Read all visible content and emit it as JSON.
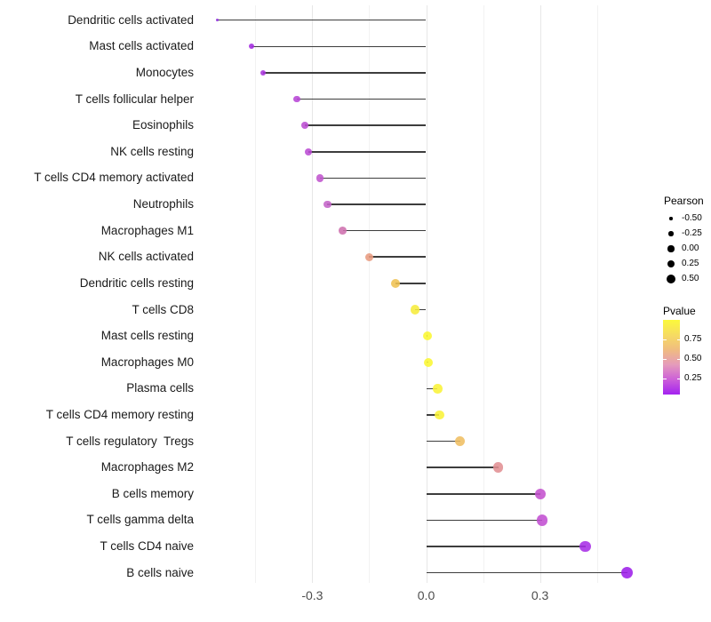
{
  "chart_data": {
    "type": "lollipop",
    "title": "",
    "xlabel": "",
    "ylabel": "",
    "xlim": [
      -0.6,
      0.56
    ],
    "x_ticks": [
      {
        "label": "-0.3",
        "value": -0.3
      },
      {
        "label": "0.0",
        "value": 0.0
      },
      {
        "label": "0.3",
        "value": 0.3
      }
    ],
    "minor_grid_values": [
      -0.45,
      -0.15,
      0.15,
      0.45
    ],
    "grid": "vertical-only",
    "points": [
      {
        "label": "Dendritic cells activated",
        "pearson": -0.55,
        "color": "#8B27DC"
      },
      {
        "label": "Mast cells activated",
        "pearson": -0.46,
        "color": "#A32BE0"
      },
      {
        "label": "Monocytes",
        "pearson": -0.43,
        "color": "#A834DC"
      },
      {
        "label": "T cells follicular helper",
        "pearson": -0.34,
        "color": "#B746D6"
      },
      {
        "label": "Eosinophils",
        "pearson": -0.32,
        "color": "#BC4ED3"
      },
      {
        "label": "NK cells resting",
        "pearson": -0.31,
        "color": "#BB4CD4"
      },
      {
        "label": "T cells CD4 memory activated",
        "pearson": -0.28,
        "color": "#C055CE"
      },
      {
        "label": "Neutrophils",
        "pearson": -0.26,
        "color": "#C464C8"
      },
      {
        "label": "Macrophages M1",
        "pearson": -0.22,
        "color": "#CE6FAE"
      },
      {
        "label": "NK cells activated",
        "pearson": -0.15,
        "color": "#E89B80"
      },
      {
        "label": "Dendritic cells resting",
        "pearson": -0.08,
        "color": "#EFC152"
      },
      {
        "label": "T cells CD8",
        "pearson": -0.03,
        "color": "#F6EC3B"
      },
      {
        "label": "Mast cells resting",
        "pearson": 0.003,
        "color": "#FBF732"
      },
      {
        "label": "Macrophages M0",
        "pearson": 0.006,
        "color": "#FBF732"
      },
      {
        "label": "Plasma cells",
        "pearson": 0.03,
        "color": "#F9F238"
      },
      {
        "label": "T cells CD4 memory resting",
        "pearson": 0.035,
        "color": "#F9F238"
      },
      {
        "label": "T cells regulatory  Tregs",
        "pearson": 0.09,
        "color": "#EFBE62"
      },
      {
        "label": "Macrophages M2",
        "pearson": 0.19,
        "color": "#E19093"
      },
      {
        "label": "B cells memory",
        "pearson": 0.3,
        "color": "#C452CE"
      },
      {
        "label": "T cells gamma delta",
        "pearson": 0.305,
        "color": "#C24FD2"
      },
      {
        "label": "T cells CD4 naive",
        "pearson": 0.42,
        "color": "#A72FE6"
      },
      {
        "label": "B cells naive",
        "pearson": 0.53,
        "color": "#9D1FE9"
      }
    ],
    "layout_colors": {
      "background": "#ffffff",
      "major_grid": "#e7e7e7",
      "minor_grid": "#f2f2f2",
      "segment": "#3d3d3d",
      "axis_text": "#4d4d4d",
      "label_text": "#1a1a1a"
    }
  },
  "legend_pearson": {
    "title": "Pearson",
    "items": [
      {
        "label": "-0.50",
        "value": -0.5
      },
      {
        "label": "-0.25",
        "value": -0.25
      },
      {
        "label": "0.00",
        "value": 0.0
      },
      {
        "label": "0.25",
        "value": 0.25
      },
      {
        "label": "0.50",
        "value": 0.5
      }
    ]
  },
  "legend_pvalue": {
    "title": "Pvalue",
    "tick_labels": [
      "0.75",
      "0.50",
      "0.25"
    ],
    "tick_values": [
      0.75,
      0.5,
      0.25
    ],
    "range": [
      0.05,
      1.0
    ],
    "gradient_top_to_bottom": [
      "#FBF93B",
      "#F6DC62",
      "#F0BC80",
      "#E59BBB",
      "#CC5FD8",
      "#A322F0"
    ]
  }
}
